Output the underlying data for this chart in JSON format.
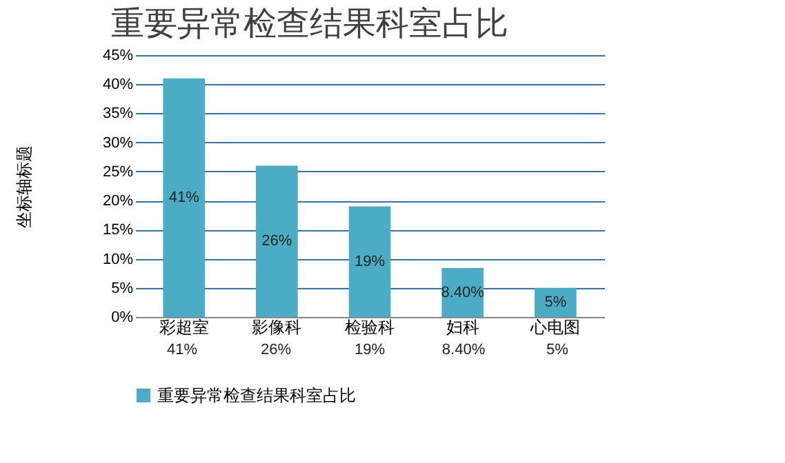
{
  "chart_data": {
    "type": "bar",
    "title": "重要异常检查结果科室占比",
    "ylabel": "坐标轴标题",
    "categories": [
      "彩超室",
      "影像科",
      "检验科",
      "妇科",
      "心电图"
    ],
    "series": [
      {
        "name": "重要异常检查结果科室占比",
        "color": "#4bacc6",
        "values": [
          41,
          26,
          19,
          8.4,
          5
        ]
      }
    ],
    "value_labels": [
      "41%",
      "26%",
      "19%",
      "8.40%",
      "5%"
    ],
    "ylim": [
      0,
      45
    ],
    "yticks": [
      {
        "value": 0,
        "label": "0%"
      },
      {
        "value": 5,
        "label": "5%"
      },
      {
        "value": 10,
        "label": "10%"
      },
      {
        "value": 15,
        "label": "15%"
      },
      {
        "value": 20,
        "label": "20%"
      },
      {
        "value": 25,
        "label": "25%"
      },
      {
        "value": 30,
        "label": "30%"
      },
      {
        "value": 35,
        "label": "35%"
      },
      {
        "value": 40,
        "label": "40%"
      },
      {
        "value": 45,
        "label": "45%"
      }
    ],
    "grid": "y",
    "legend": "bottom"
  }
}
